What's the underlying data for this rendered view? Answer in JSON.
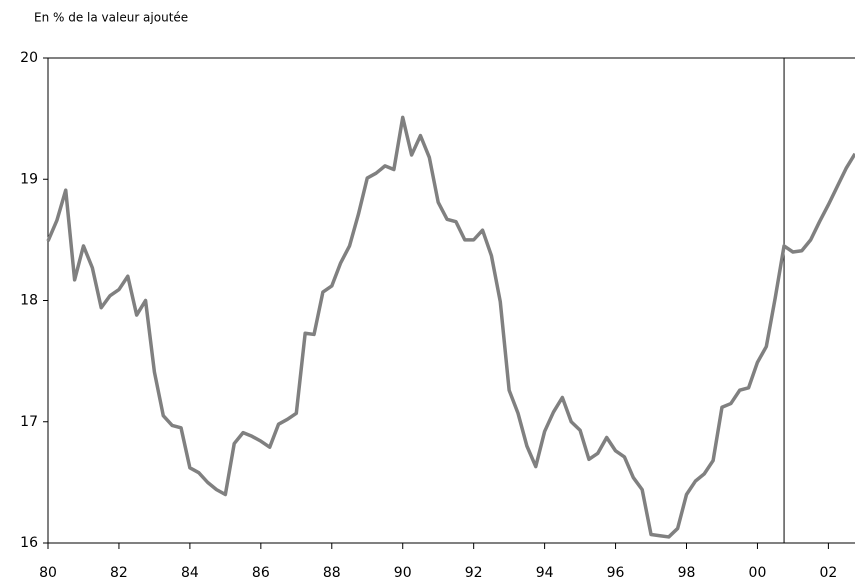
{
  "chart_data": {
    "type": "line",
    "title": "En % de la valeur ajoutée",
    "x": [
      1980,
      1980.25,
      1980.5,
      1980.75,
      1981,
      1981.25,
      1981.5,
      1981.75,
      1982,
      1982.25,
      1982.5,
      1982.75,
      1983,
      1983.25,
      1983.5,
      1983.75,
      1984,
      1984.25,
      1984.5,
      1984.75,
      1985,
      1985.25,
      1985.5,
      1985.75,
      1986,
      1986.25,
      1986.5,
      1986.75,
      1987,
      1987.25,
      1987.5,
      1987.75,
      1988,
      1988.25,
      1988.5,
      1988.75,
      1989,
      1989.25,
      1989.5,
      1989.75,
      1990,
      1990.25,
      1990.5,
      1990.75,
      1991,
      1991.25,
      1991.5,
      1991.75,
      1992,
      1992.25,
      1992.5,
      1992.75,
      1993,
      1993.25,
      1993.5,
      1993.75,
      1994,
      1994.25,
      1994.5,
      1994.75,
      1995,
      1995.25,
      1995.5,
      1995.75,
      1996,
      1996.25,
      1996.5,
      1996.75,
      1997,
      1997.25,
      1997.5,
      1997.75,
      1998,
      1998.25,
      1998.5,
      1998.75,
      1999,
      1999.25,
      1999.5,
      1999.75,
      2000,
      2000.25,
      2000.5,
      2000.75,
      2001,
      2001.25,
      2001.5,
      2001.75,
      2002,
      2002.25,
      2002.5,
      2002.75
    ],
    "series": [
      {
        "color": "#808080",
        "values": [
          18.49,
          18.66,
          18.91,
          18.17,
          18.45,
          18.27,
          17.94,
          18.04,
          18.09,
          18.2,
          17.88,
          18.0,
          17.41,
          17.05,
          16.97,
          16.95,
          16.62,
          16.58,
          16.5,
          16.44,
          16.4,
          16.82,
          16.91,
          16.88,
          16.84,
          16.79,
          16.98,
          17.02,
          17.07,
          17.73,
          17.72,
          18.07,
          18.12,
          18.31,
          18.45,
          18.71,
          19.01,
          19.05,
          19.11,
          19.08,
          19.51,
          19.2,
          19.36,
          19.18,
          18.81,
          18.67,
          18.65,
          18.5,
          18.5,
          18.58,
          18.37,
          17.99,
          17.26,
          17.07,
          16.8,
          16.63,
          16.92,
          17.08,
          17.2,
          17.0,
          16.93,
          16.69,
          16.74,
          16.87,
          16.76,
          16.71,
          16.54,
          16.44,
          16.07,
          16.06,
          16.05,
          16.12,
          16.4,
          16.51,
          16.57,
          16.68,
          17.12,
          17.15,
          17.26,
          17.28,
          17.49,
          17.62,
          18.02,
          18.45,
          18.4,
          18.41,
          18.5,
          18.65,
          18.79,
          18.94,
          19.09,
          19.21
        ]
      }
    ],
    "xlim": [
      1980,
      2002.75
    ],
    "xticks": [
      {
        "value": 1980,
        "label": "80"
      },
      {
        "value": 1982,
        "label": "82"
      },
      {
        "value": 1984,
        "label": "84"
      },
      {
        "value": 1986,
        "label": "86"
      },
      {
        "value": 1988,
        "label": "88"
      },
      {
        "value": 1990,
        "label": "90"
      },
      {
        "value": 1992,
        "label": "92"
      },
      {
        "value": 1994,
        "label": "94"
      },
      {
        "value": 1996,
        "label": "96"
      },
      {
        "value": 1998,
        "label": "98"
      },
      {
        "value": 2000,
        "label": "00"
      },
      {
        "value": 2002,
        "label": "02"
      }
    ],
    "ylim": [
      16,
      20
    ],
    "yticks": [
      16,
      17,
      18,
      19,
      20
    ],
    "vertical_line": 2000.75,
    "grid": false
  }
}
